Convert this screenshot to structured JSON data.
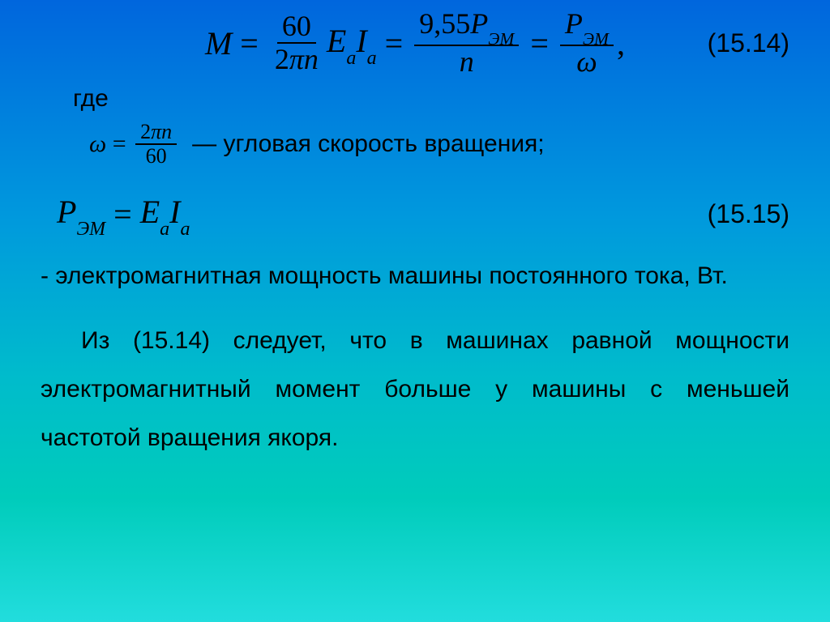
{
  "colors": {
    "text": "#000000",
    "gradient_top": "#0066dd",
    "gradient_mid": "#00bbcc",
    "gradient_bottom": "#22dddd"
  },
  "typography": {
    "body_font": "Arial",
    "formula_font": "Times New Roman",
    "body_size_pt": 30,
    "formula_size_pt": 40,
    "eqnum_size_pt": 32
  },
  "eq1": {
    "number": "(15.14)",
    "lhs": "M",
    "frac1_num": "60",
    "frac1_den_a": "2",
    "frac1_den_pi": "π",
    "frac1_den_b": "n",
    "term1_a": "E",
    "term1_a_sub": "a",
    "term1_b": "I",
    "term1_b_sub": "a",
    "frac2_num_a": "9,55",
    "frac2_num_b": "P",
    "frac2_num_sub": "ЭМ",
    "frac2_den": "n",
    "frac3_num": "P",
    "frac3_num_sub": "ЭМ",
    "frac3_den": "ω",
    "trail": ","
  },
  "where_label": "где",
  "omega": {
    "lhs": "ω",
    "num_a": "2",
    "num_pi": "π",
    "num_b": "n",
    "den": "60",
    "desc": "— угловая скорость вращения;"
  },
  "eq2": {
    "number": "(15.15)",
    "lhs": "P",
    "lhs_sub": "ЭМ",
    "rhs_a": "E",
    "rhs_a_sub": "a",
    "rhs_b": "I",
    "rhs_b_sub": "a"
  },
  "para1": "- электромагнитная мощность машины постоянного тока, Вт.",
  "para2": "Из (15.14) следует, что в машинах равной мощности электромагнитный момент больше у машины с меньшей частотой вращения якоря."
}
